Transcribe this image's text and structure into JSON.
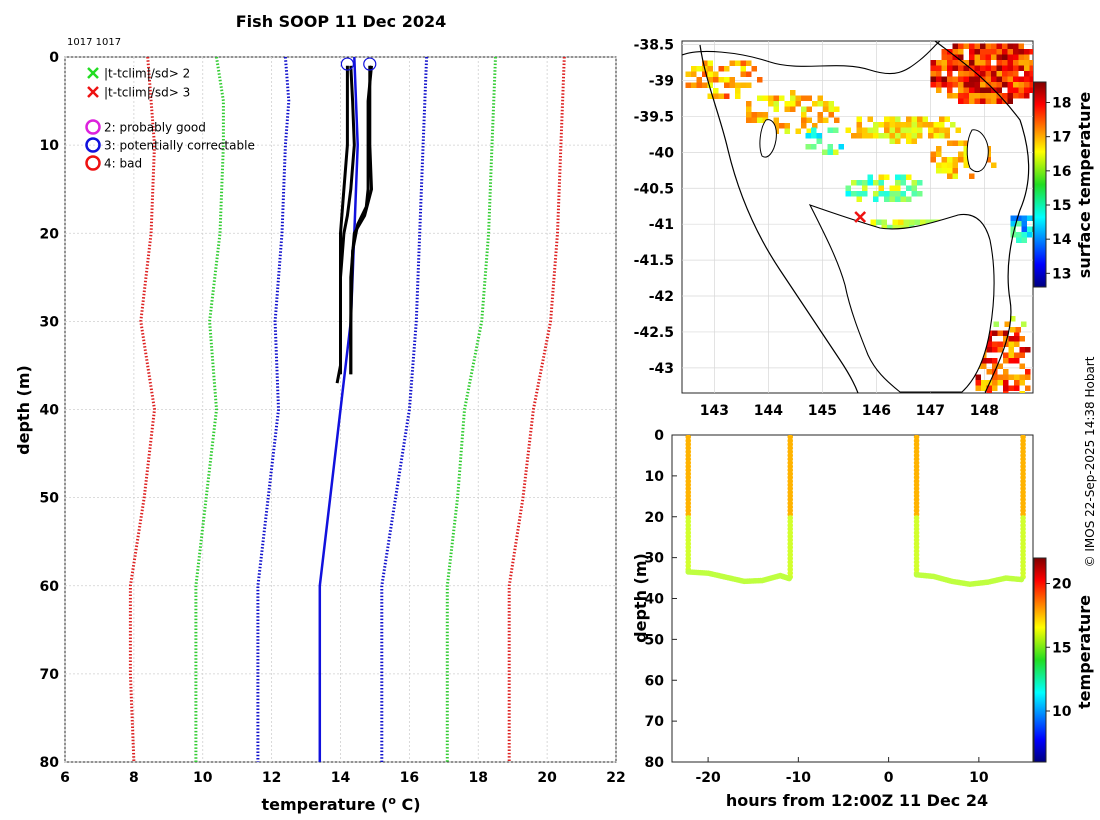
{
  "chart_data": [
    {
      "type": "line",
      "name": "profile",
      "title": "Fish SOOP 11 Dec 2024",
      "id_label": "1017 1017",
      "xlabel": "temperature (",
      "xlabel_sup": "o",
      "xlabel_end": " C)",
      "ylabel": "depth (m)",
      "xlim": [
        6,
        22
      ],
      "ylim": [
        80,
        0
      ],
      "xticks": [
        6,
        8,
        10,
        12,
        14,
        16,
        18,
        20,
        22
      ],
      "yticks": [
        0,
        10,
        20,
        30,
        40,
        50,
        60,
        70,
        80
      ],
      "grid": true,
      "legend": {
        "placement": "top-left",
        "items": [
          {
            "marker": "x",
            "color": "#22dd22",
            "label": "|t-tclim|/sd> 2"
          },
          {
            "marker": "x",
            "color": "#ee1111",
            "label": "|t-tclim|/sd> 3"
          },
          {
            "marker": "o",
            "color": "#dd22dd",
            "label": "2: probably good"
          },
          {
            "marker": "o",
            "color": "#1111dd",
            "label": "3: potentially correctable"
          },
          {
            "marker": "o",
            "color": "#ee1111",
            "label": "4: bad"
          }
        ]
      },
      "series": [
        {
          "name": "clim-3sd-low",
          "color": "#dd2222",
          "style": "dotted",
          "points": [
            [
              8.4,
              0
            ],
            [
              8.5,
              5
            ],
            [
              8.6,
              10
            ],
            [
              8.5,
              20
            ],
            [
              8.2,
              30
            ],
            [
              8.6,
              40
            ],
            [
              8.3,
              50
            ],
            [
              7.9,
              60
            ],
            [
              7.9,
              70
            ],
            [
              8.0,
              80
            ]
          ]
        },
        {
          "name": "clim-2sd-low",
          "color": "#33cc33",
          "style": "dotted",
          "points": [
            [
              10.4,
              0
            ],
            [
              10.6,
              5
            ],
            [
              10.6,
              10
            ],
            [
              10.5,
              20
            ],
            [
              10.2,
              30
            ],
            [
              10.4,
              40
            ],
            [
              10.1,
              50
            ],
            [
              9.8,
              60
            ],
            [
              9.8,
              70
            ],
            [
              9.8,
              80
            ]
          ]
        },
        {
          "name": "clim-1sd-low",
          "color": "#1111cc",
          "style": "dotted",
          "points": [
            [
              12.4,
              0
            ],
            [
              12.5,
              5
            ],
            [
              12.4,
              10
            ],
            [
              12.3,
              20
            ],
            [
              12.1,
              30
            ],
            [
              12.2,
              40
            ],
            [
              11.9,
              50
            ],
            [
              11.6,
              60
            ],
            [
              11.6,
              70
            ],
            [
              11.6,
              80
            ]
          ]
        },
        {
          "name": "clim-mean",
          "color": "#1111dd",
          "style": "solid",
          "points": [
            [
              14.4,
              0
            ],
            [
              14.5,
              10
            ],
            [
              14.4,
              20
            ],
            [
              14.3,
              30
            ],
            [
              14.0,
              40
            ],
            [
              13.7,
              50
            ],
            [
              13.4,
              60
            ],
            [
              13.4,
              70
            ],
            [
              13.4,
              80
            ]
          ]
        },
        {
          "name": "clim-1sd-high",
          "color": "#1111cc",
          "style": "dotted",
          "points": [
            [
              16.5,
              0
            ],
            [
              16.4,
              10
            ],
            [
              16.3,
              20
            ],
            [
              16.2,
              30
            ],
            [
              16.0,
              40
            ],
            [
              15.6,
              50
            ],
            [
              15.2,
              60
            ],
            [
              15.2,
              70
            ],
            [
              15.2,
              80
            ]
          ]
        },
        {
          "name": "clim-2sd-high",
          "color": "#33cc33",
          "style": "dotted",
          "points": [
            [
              18.5,
              0
            ],
            [
              18.4,
              10
            ],
            [
              18.3,
              20
            ],
            [
              18.1,
              30
            ],
            [
              17.6,
              40
            ],
            [
              17.4,
              50
            ],
            [
              17.1,
              60
            ],
            [
              17.1,
              70
            ],
            [
              17.1,
              80
            ]
          ]
        },
        {
          "name": "clim-3sd-high",
          "color": "#dd2222",
          "style": "dotted",
          "points": [
            [
              20.5,
              0
            ],
            [
              20.4,
              10
            ],
            [
              20.3,
              20
            ],
            [
              20.1,
              30
            ],
            [
              19.6,
              40
            ],
            [
              19.3,
              50
            ],
            [
              18.9,
              60
            ],
            [
              18.9,
              70
            ],
            [
              18.9,
              80
            ]
          ]
        },
        {
          "name": "obs-1",
          "color": "#000000",
          "style": "solid",
          "points": [
            [
              14.2,
              1
            ],
            [
              14.2,
              5
            ],
            [
              14.2,
              10
            ],
            [
              14.1,
              15
            ],
            [
              14.0,
              20
            ],
            [
              14.0,
              25
            ],
            [
              14.0,
              30
            ],
            [
              14.0,
              35
            ],
            [
              13.9,
              37
            ]
          ]
        },
        {
          "name": "obs-2",
          "color": "#000000",
          "style": "solid",
          "points": [
            [
              14.3,
              1
            ],
            [
              14.35,
              5
            ],
            [
              14.4,
              10
            ],
            [
              14.3,
              15
            ],
            [
              14.2,
              18
            ],
            [
              14.1,
              20
            ],
            [
              14.0,
              25
            ],
            [
              14.0,
              30
            ],
            [
              14.0,
              36
            ]
          ]
        },
        {
          "name": "obs-3",
          "color": "#000000",
          "style": "solid",
          "points": [
            [
              14.85,
              1
            ],
            [
              14.85,
              5
            ],
            [
              14.85,
              10
            ],
            [
              14.9,
              15
            ],
            [
              14.7,
              18
            ],
            [
              14.4,
              20
            ],
            [
              14.3,
              25
            ],
            [
              14.3,
              30
            ],
            [
              14.3,
              36
            ]
          ]
        },
        {
          "name": "obs-4",
          "color": "#000000",
          "style": "solid",
          "points": [
            [
              14.9,
              1
            ],
            [
              14.8,
              5
            ],
            [
              14.8,
              10
            ],
            [
              14.8,
              15
            ],
            [
              14.75,
              17
            ],
            [
              14.5,
              19
            ],
            [
              14.35,
              22
            ],
            [
              14.3,
              30
            ],
            [
              14.3,
              36
            ]
          ]
        }
      ],
      "flags": [
        {
          "x": 14.2,
          "y": 0.8,
          "color": "#1111dd"
        },
        {
          "x": 14.85,
          "y": 0.8,
          "color": "#1111dd"
        }
      ]
    },
    {
      "type": "heatmap",
      "name": "sst-map",
      "xlim": [
        142.4,
        148.9
      ],
      "ylim": [
        -43.35,
        -38.45
      ],
      "xticks": [
        143,
        144,
        145,
        146,
        147,
        148
      ],
      "yticks": [
        -38.5,
        -39,
        -39.5,
        -40,
        -40.5,
        -41,
        -41.5,
        -42,
        -42.5,
        -43
      ],
      "colorbar": {
        "label": "surface temperature",
        "range": [
          12.6,
          18.6
        ],
        "ticks": [
          13,
          14,
          15,
          16,
          17,
          18
        ]
      },
      "track": {
        "lon": 145.7,
        "lat": -40.9,
        "color": "#ee1111"
      }
    },
    {
      "type": "scatter",
      "name": "depth-time",
      "xlabel": "hours from 12:00Z 11 Dec 24",
      "ylabel": "depth (m)",
      "xlim": [
        -24,
        16
      ],
      "ylim": [
        80,
        0
      ],
      "xticks": [
        -20,
        -10,
        0,
        10
      ],
      "yticks": [
        0,
        10,
        20,
        30,
        40,
        50,
        60,
        70,
        80
      ],
      "colorbar": {
        "label": "temperature",
        "range": [
          6,
          22
        ],
        "ticks": [
          10,
          15,
          20
        ]
      },
      "casts": [
        {
          "t_down": -22.2,
          "t_up": -10.9,
          "bottom": [
            [
              -22.2,
              33.5
            ],
            [
              -20,
              33.8
            ],
            [
              -18,
              34.8
            ],
            [
              -16,
              35.8
            ],
            [
              -14,
              35.6
            ],
            [
              -12,
              34.4
            ],
            [
              -10.9,
              35.2
            ]
          ]
        },
        {
          "t_down": 3.1,
          "t_up": 14.9,
          "bottom": [
            [
              3.1,
              34.2
            ],
            [
              5,
              34.6
            ],
            [
              7,
              35.8
            ],
            [
              9,
              36.5
            ],
            [
              11,
              36.0
            ],
            [
              13,
              35.0
            ],
            [
              14.9,
              35.4
            ]
          ]
        }
      ]
    }
  ],
  "credit": "© IMOS 22-Sep-2025 14:38 Hobart"
}
